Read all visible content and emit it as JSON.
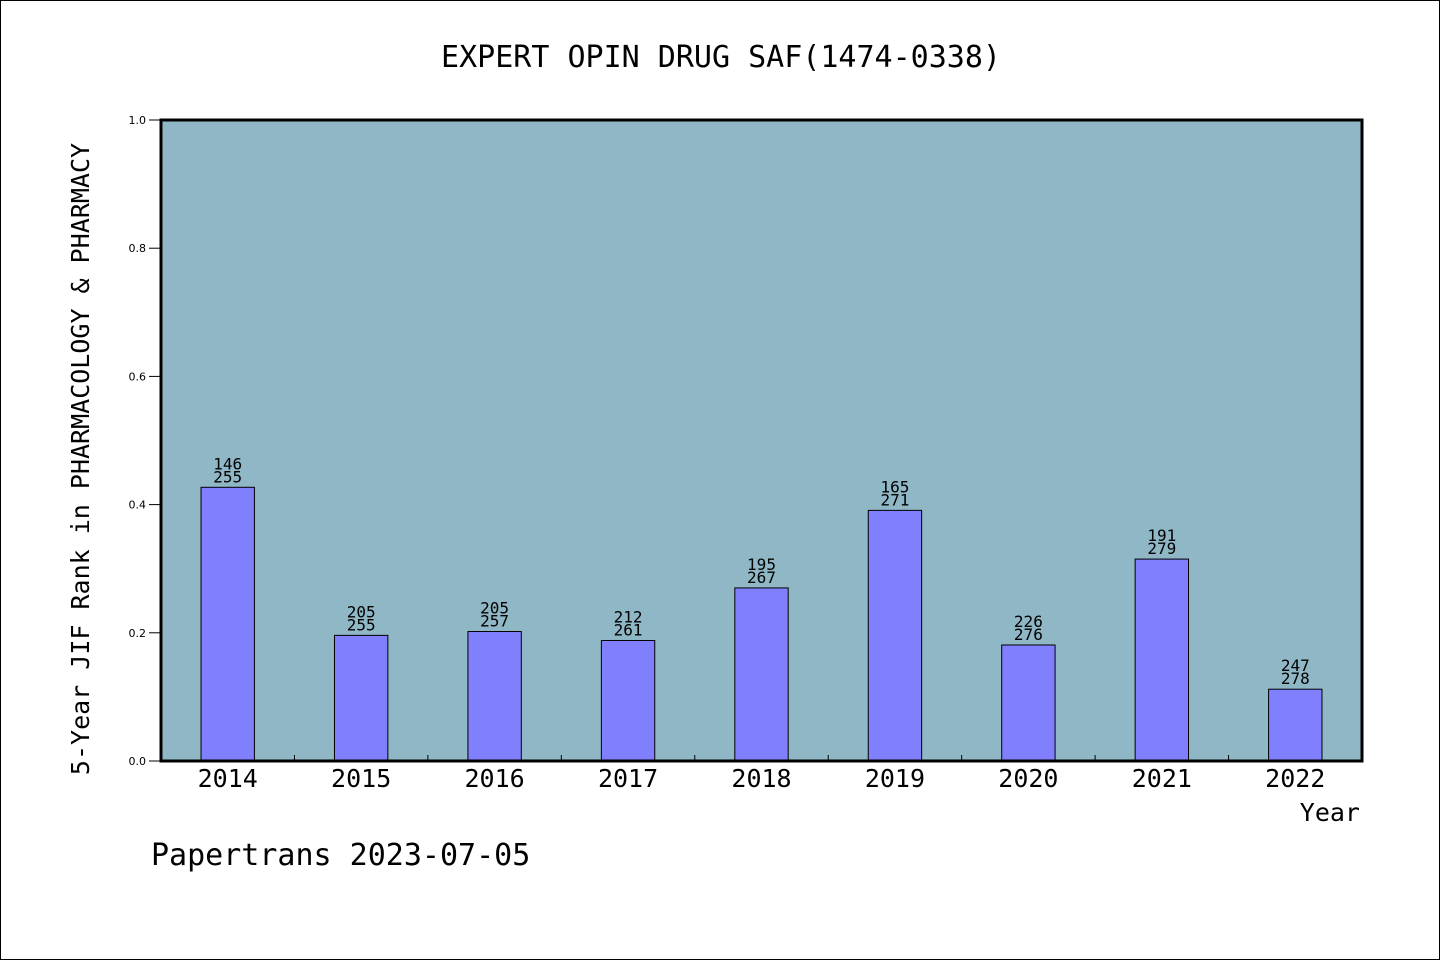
{
  "chart_data": {
    "type": "bar",
    "title": "EXPERT OPIN DRUG SAF(1474-0338)",
    "xlabel": "Year",
    "ylabel": "5-Year JIF Rank in PHARMACOLOGY & PHARMACY",
    "ylim": [
      0,
      1.0
    ],
    "yticks": [
      "0.0",
      "0.2",
      "0.4",
      "0.6",
      "0.8",
      "1.0"
    ],
    "categories": [
      "2014",
      "2015",
      "2016",
      "2017",
      "2018",
      "2019",
      "2020",
      "2021",
      "2022"
    ],
    "values": [
      0.427,
      0.196,
      0.202,
      0.188,
      0.27,
      0.391,
      0.181,
      0.315,
      0.112
    ],
    "labels": [
      [
        "146",
        "255"
      ],
      [
        "205",
        "255"
      ],
      [
        "205",
        "257"
      ],
      [
        "212",
        "261"
      ],
      [
        "195",
        "267"
      ],
      [
        "165",
        "271"
      ],
      [
        "226",
        "276"
      ],
      [
        "191",
        "279"
      ],
      [
        "247",
        "278"
      ]
    ],
    "grid": false,
    "colors": {
      "plot_background": "#8fb7c5",
      "bar_fill": "#8080ff",
      "bar_stroke": "#000000"
    }
  },
  "footer": {
    "text": "Papertrans 2023-07-05"
  }
}
